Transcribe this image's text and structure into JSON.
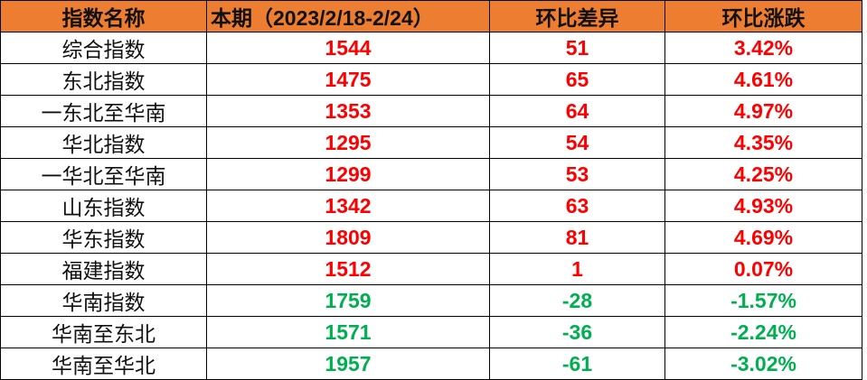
{
  "headers": [
    "指数名称",
    "本期（2023/2/18-2/24）",
    "环比差异",
    "环比涨跌"
  ],
  "colors": {
    "header_bg": "#ED7D31",
    "up": "#FF0000",
    "down": "#00B050"
  },
  "rows": [
    {
      "name": "综合指数",
      "value": "1544",
      "diff": "51",
      "pct": "3.42%",
      "dir": "up"
    },
    {
      "name": "东北指数",
      "value": "1475",
      "diff": "65",
      "pct": "4.61%",
      "dir": "up"
    },
    {
      "name": "一东北至华南",
      "value": "1353",
      "diff": "64",
      "pct": "4.97%",
      "dir": "up"
    },
    {
      "name": "华北指数",
      "value": "1295",
      "diff": "54",
      "pct": "4.35%",
      "dir": "up"
    },
    {
      "name": "一华北至华南",
      "value": "1299",
      "diff": "53",
      "pct": "4.25%",
      "dir": "up"
    },
    {
      "name": "山东指数",
      "value": "1342",
      "diff": "63",
      "pct": "4.93%",
      "dir": "up"
    },
    {
      "name": "华东指数",
      "value": "1809",
      "diff": "81",
      "pct": "4.69%",
      "dir": "up"
    },
    {
      "name": "福建指数",
      "value": "1512",
      "diff": "1",
      "pct": "0.07%",
      "dir": "up"
    },
    {
      "name": "华南指数",
      "value": "1759",
      "diff": "-28",
      "pct": "-1.57%",
      "dir": "down"
    },
    {
      "name": "华南至东北",
      "value": "1571",
      "diff": "-36",
      "pct": "-2.24%",
      "dir": "down"
    },
    {
      "name": "华南至华北",
      "value": "1957",
      "diff": "-61",
      "pct": "-3.02%",
      "dir": "down"
    }
  ]
}
